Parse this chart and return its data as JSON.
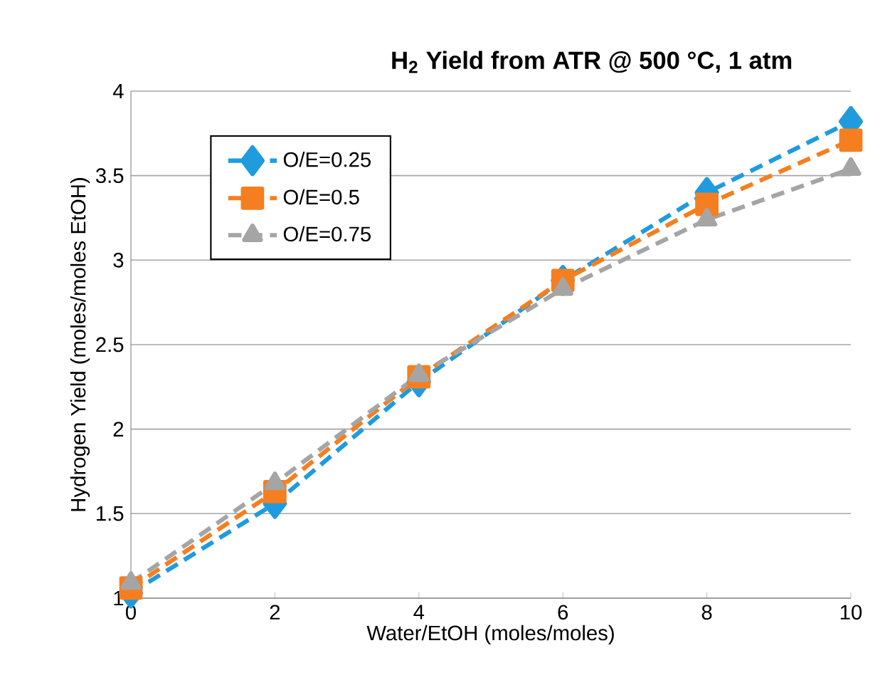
{
  "chart_data": {
    "type": "line",
    "title": "H$_{2}$ Yield from ATR @ 500 °C, 1 atm",
    "xlabel": "Water/EtOH (moles/moles)",
    "ylabel": "Hydrogen Yield (moles/moles EtOH)",
    "x": [
      0,
      2,
      4,
      6,
      8,
      10
    ],
    "series": [
      {
        "name": "O/E=0.25",
        "color": "#1f9bde",
        "marker": "diamond",
        "values": [
          1.03,
          1.56,
          2.28,
          2.88,
          3.4,
          3.82
        ]
      },
      {
        "name": "O/E=0.5",
        "color": "#f57f20",
        "marker": "square",
        "values": [
          1.06,
          1.63,
          2.31,
          2.88,
          3.33,
          3.71
        ]
      },
      {
        "name": "O/E=0.75",
        "color": "#a5a5a5",
        "marker": "triangle",
        "values": [
          1.09,
          1.68,
          2.32,
          2.83,
          3.24,
          3.54
        ]
      }
    ],
    "xlim": [
      0,
      10
    ],
    "xticks": [
      0,
      2,
      4,
      6,
      8,
      10
    ],
    "ylim": [
      1,
      4
    ],
    "yticks": [
      1,
      1.5,
      2,
      2.5,
      3,
      3.5,
      4
    ],
    "grid": "y",
    "legend": "top left",
    "line_style": "dashed"
  }
}
